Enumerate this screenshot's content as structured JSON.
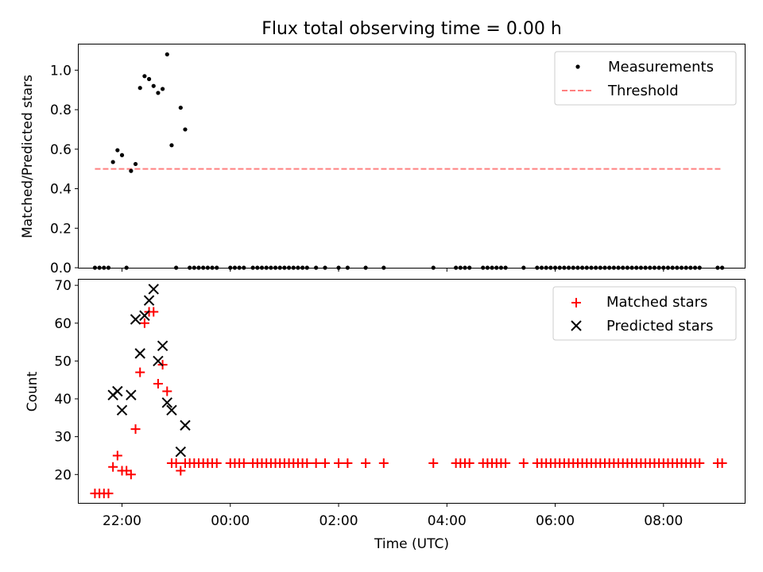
{
  "title": "Flux total observing time = 0.00 h",
  "chart_data": [
    {
      "type": "scatter",
      "panel": "top",
      "ylabel": "Matched/Predicted stars",
      "xlabel": "",
      "xlim_hours": [
        -2.8,
        9.5
      ],
      "ylim": [
        0,
        1.13
      ],
      "yticks": [
        0.0,
        0.2,
        0.4,
        0.6,
        0.8,
        1.0
      ],
      "ytick_labels": [
        "0.0",
        "0.2",
        "0.4",
        "0.6",
        "0.8",
        "1.0"
      ],
      "legend": {
        "position": "top-right",
        "entries": [
          "Measurements",
          "Threshold"
        ]
      },
      "threshold": {
        "name": "Threshold",
        "value": 0.5,
        "x_range": [
          "21:30",
          "09:05"
        ],
        "color": "#ff8080",
        "style": "dashed"
      },
      "series": [
        {
          "name": "Measurements",
          "marker": "dot",
          "color": "#000000",
          "points": [
            [
              "21:50",
              0.535
            ],
            [
              "21:55",
              0.595
            ],
            [
              "22:00",
              0.57
            ],
            [
              "22:10",
              0.49
            ],
            [
              "22:15",
              0.525
            ],
            [
              "22:20",
              0.91
            ],
            [
              "22:25",
              0.97
            ],
            [
              "22:30",
              0.955
            ],
            [
              "22:35",
              0.92
            ],
            [
              "22:40",
              0.885
            ],
            [
              "22:45",
              0.905
            ],
            [
              "22:50",
              1.08
            ],
            [
              "22:55",
              0.62
            ],
            [
              "23:05",
              0.81
            ],
            [
              "23:10",
              0.7
            ],
            [
              "21:30",
              0
            ],
            [
              "21:35",
              0
            ],
            [
              "21:40",
              0
            ],
            [
              "21:45",
              0
            ],
            [
              "22:05",
              0
            ],
            [
              "23:00",
              0
            ],
            [
              "23:15",
              0
            ],
            [
              "23:20",
              0
            ],
            [
              "23:25",
              0
            ],
            [
              "23:30",
              0
            ],
            [
              "23:35",
              0
            ],
            [
              "23:40",
              0
            ],
            [
              "23:45",
              0
            ],
            [
              "00:00",
              0
            ],
            [
              "00:05",
              0
            ],
            [
              "00:10",
              0
            ],
            [
              "00:15",
              0
            ],
            [
              "00:25",
              0
            ],
            [
              "00:30",
              0
            ],
            [
              "00:35",
              0
            ],
            [
              "00:40",
              0
            ],
            [
              "00:45",
              0
            ],
            [
              "00:50",
              0
            ],
            [
              "00:55",
              0
            ],
            [
              "01:00",
              0
            ],
            [
              "01:05",
              0
            ],
            [
              "01:10",
              0
            ],
            [
              "01:15",
              0
            ],
            [
              "01:20",
              0
            ],
            [
              "01:25",
              0
            ],
            [
              "01:35",
              0
            ],
            [
              "01:45",
              0
            ],
            [
              "02:00",
              0
            ],
            [
              "02:10",
              0
            ],
            [
              "02:30",
              0
            ],
            [
              "02:50",
              0
            ],
            [
              "03:45",
              0
            ],
            [
              "04:10",
              0
            ],
            [
              "04:15",
              0
            ],
            [
              "04:20",
              0
            ],
            [
              "04:25",
              0
            ],
            [
              "04:40",
              0
            ],
            [
              "04:45",
              0
            ],
            [
              "04:50",
              0
            ],
            [
              "04:55",
              0
            ],
            [
              "05:00",
              0
            ],
            [
              "05:05",
              0
            ],
            [
              "05:25",
              0
            ],
            [
              "05:40",
              0
            ],
            [
              "05:45",
              0
            ],
            [
              "05:50",
              0
            ],
            [
              "05:55",
              0
            ],
            [
              "06:00",
              0
            ],
            [
              "06:05",
              0
            ],
            [
              "06:10",
              0
            ],
            [
              "06:15",
              0
            ],
            [
              "06:20",
              0
            ],
            [
              "06:25",
              0
            ],
            [
              "06:30",
              0
            ],
            [
              "06:35",
              0
            ],
            [
              "06:40",
              0
            ],
            [
              "06:45",
              0
            ],
            [
              "06:50",
              0
            ],
            [
              "06:55",
              0
            ],
            [
              "07:00",
              0
            ],
            [
              "07:05",
              0
            ],
            [
              "07:10",
              0
            ],
            [
              "07:15",
              0
            ],
            [
              "07:20",
              0
            ],
            [
              "07:25",
              0
            ],
            [
              "07:30",
              0
            ],
            [
              "07:35",
              0
            ],
            [
              "07:40",
              0
            ],
            [
              "07:45",
              0
            ],
            [
              "07:50",
              0
            ],
            [
              "07:55",
              0
            ],
            [
              "08:00",
              0
            ],
            [
              "08:05",
              0
            ],
            [
              "08:10",
              0
            ],
            [
              "08:15",
              0
            ],
            [
              "08:20",
              0
            ],
            [
              "08:25",
              0
            ],
            [
              "08:30",
              0
            ],
            [
              "08:35",
              0
            ],
            [
              "08:40",
              0
            ],
            [
              "09:00",
              0
            ],
            [
              "09:05",
              0
            ]
          ]
        }
      ]
    },
    {
      "type": "scatter",
      "panel": "bottom",
      "ylabel": "Count",
      "xlabel": "Time (UTC)",
      "xlim_hours": [
        -2.8,
        9.5
      ],
      "ylim": [
        12.5,
        71.5
      ],
      "yticks": [
        20,
        30,
        40,
        50,
        60,
        70
      ],
      "ytick_labels": [
        "20",
        "30",
        "40",
        "50",
        "60",
        "70"
      ],
      "xticks_hours": [
        -2,
        0,
        2,
        4,
        6,
        8
      ],
      "xtick_labels": [
        "22:00",
        "00:00",
        "02:00",
        "04:00",
        "06:00",
        "08:00"
      ],
      "legend": {
        "position": "top-right",
        "entries": [
          "Matched stars",
          "Predicted stars"
        ]
      },
      "series": [
        {
          "name": "Matched stars",
          "marker": "plus",
          "color": "#ff0000",
          "points": [
            [
              "21:30",
              15
            ],
            [
              "21:35",
              15
            ],
            [
              "21:40",
              15
            ],
            [
              "21:45",
              15
            ],
            [
              "21:50",
              22
            ],
            [
              "21:55",
              25
            ],
            [
              "22:00",
              21
            ],
            [
              "22:05",
              21
            ],
            [
              "22:10",
              20
            ],
            [
              "22:15",
              32
            ],
            [
              "22:20",
              47
            ],
            [
              "22:25",
              60
            ],
            [
              "22:30",
              63
            ],
            [
              "22:35",
              63
            ],
            [
              "22:40",
              44
            ],
            [
              "22:45",
              49
            ],
            [
              "22:50",
              42
            ],
            [
              "22:55",
              23
            ],
            [
              "23:00",
              23
            ],
            [
              "23:05",
              21
            ],
            [
              "23:10",
              23
            ],
            [
              "23:15",
              23
            ],
            [
              "23:20",
              23
            ],
            [
              "23:25",
              23
            ],
            [
              "23:30",
              23
            ],
            [
              "23:35",
              23
            ],
            [
              "23:40",
              23
            ],
            [
              "23:45",
              23
            ],
            [
              "00:00",
              23
            ],
            [
              "00:05",
              23
            ],
            [
              "00:10",
              23
            ],
            [
              "00:15",
              23
            ],
            [
              "00:25",
              23
            ],
            [
              "00:30",
              23
            ],
            [
              "00:35",
              23
            ],
            [
              "00:40",
              23
            ],
            [
              "00:45",
              23
            ],
            [
              "00:50",
              23
            ],
            [
              "00:55",
              23
            ],
            [
              "01:00",
              23
            ],
            [
              "01:05",
              23
            ],
            [
              "01:10",
              23
            ],
            [
              "01:15",
              23
            ],
            [
              "01:20",
              23
            ],
            [
              "01:25",
              23
            ],
            [
              "01:35",
              23
            ],
            [
              "01:45",
              23
            ],
            [
              "02:00",
              23
            ],
            [
              "02:10",
              23
            ],
            [
              "02:30",
              23
            ],
            [
              "02:50",
              23
            ],
            [
              "03:45",
              23
            ],
            [
              "04:10",
              23
            ],
            [
              "04:15",
              23
            ],
            [
              "04:20",
              23
            ],
            [
              "04:25",
              23
            ],
            [
              "04:40",
              23
            ],
            [
              "04:45",
              23
            ],
            [
              "04:50",
              23
            ],
            [
              "04:55",
              23
            ],
            [
              "05:00",
              23
            ],
            [
              "05:05",
              23
            ],
            [
              "05:25",
              23
            ],
            [
              "05:40",
              23
            ],
            [
              "05:45",
              23
            ],
            [
              "05:50",
              23
            ],
            [
              "05:55",
              23
            ],
            [
              "06:00",
              23
            ],
            [
              "06:05",
              23
            ],
            [
              "06:10",
              23
            ],
            [
              "06:15",
              23
            ],
            [
              "06:20",
              23
            ],
            [
              "06:25",
              23
            ],
            [
              "06:30",
              23
            ],
            [
              "06:35",
              23
            ],
            [
              "06:40",
              23
            ],
            [
              "06:45",
              23
            ],
            [
              "06:50",
              23
            ],
            [
              "06:55",
              23
            ],
            [
              "07:00",
              23
            ],
            [
              "07:05",
              23
            ],
            [
              "07:10",
              23
            ],
            [
              "07:15",
              23
            ],
            [
              "07:20",
              23
            ],
            [
              "07:25",
              23
            ],
            [
              "07:30",
              23
            ],
            [
              "07:35",
              23
            ],
            [
              "07:40",
              23
            ],
            [
              "07:45",
              23
            ],
            [
              "07:50",
              23
            ],
            [
              "07:55",
              23
            ],
            [
              "08:00",
              23
            ],
            [
              "08:05",
              23
            ],
            [
              "08:10",
              23
            ],
            [
              "08:15",
              23
            ],
            [
              "08:20",
              23
            ],
            [
              "08:25",
              23
            ],
            [
              "08:30",
              23
            ],
            [
              "08:35",
              23
            ],
            [
              "08:40",
              23
            ],
            [
              "09:00",
              23
            ],
            [
              "09:05",
              23
            ]
          ]
        },
        {
          "name": "Predicted stars",
          "marker": "x",
          "color": "#000000",
          "points": [
            [
              "21:50",
              41
            ],
            [
              "21:55",
              42
            ],
            [
              "22:00",
              37
            ],
            [
              "22:10",
              41
            ],
            [
              "22:15",
              61
            ],
            [
              "22:20",
              52
            ],
            [
              "22:25",
              62
            ],
            [
              "22:30",
              66
            ],
            [
              "22:35",
              69
            ],
            [
              "22:40",
              50
            ],
            [
              "22:45",
              54
            ],
            [
              "22:50",
              39
            ],
            [
              "22:55",
              37
            ],
            [
              "23:05",
              26
            ],
            [
              "23:10",
              33
            ]
          ]
        }
      ]
    }
  ]
}
